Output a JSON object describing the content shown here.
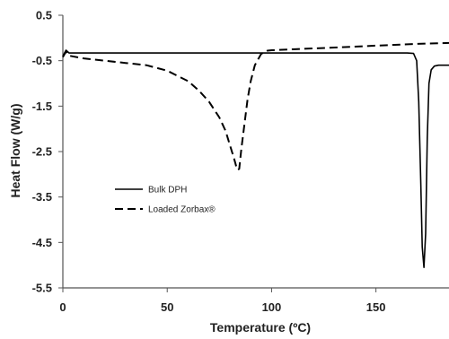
{
  "chart_data": {
    "type": "line",
    "title": "",
    "xlabel": "Temperature (ºC)",
    "ylabel": "Heat Flow (W/g)",
    "xlim": [
      0,
      185
    ],
    "ylim": [
      -5.5,
      0.5
    ],
    "xticks": [
      0,
      50,
      100,
      150
    ],
    "yticks": [
      0.5,
      -0.5,
      -1.5,
      -2.5,
      -3.5,
      -4.5,
      -5.5
    ],
    "grid": false,
    "legend": {
      "placement": "center-left",
      "entries": [
        "Bulk DPH",
        "Loaded Zorbax®"
      ]
    },
    "series": [
      {
        "name": "Bulk DPH",
        "style": "solid",
        "color": "#000000",
        "x": [
          0,
          1.5,
          3,
          10,
          30,
          60,
          90,
          120,
          150,
          165,
          168,
          169.5,
          170.5,
          171.5,
          172.2,
          173,
          173.8,
          174.6,
          175.4,
          176.5,
          178,
          180,
          185
        ],
        "y": [
          -0.4,
          -0.27,
          -0.33,
          -0.33,
          -0.33,
          -0.33,
          -0.33,
          -0.33,
          -0.33,
          -0.33,
          -0.34,
          -0.5,
          -1.4,
          -3.2,
          -4.6,
          -5.05,
          -4.3,
          -2.2,
          -1.0,
          -0.7,
          -0.62,
          -0.6,
          -0.6
        ]
      },
      {
        "name": "Loaded Zorbax®",
        "style": "dashed",
        "color": "#000000",
        "x": [
          0,
          1.5,
          3,
          10,
          20,
          30,
          40,
          50,
          60,
          65,
          70,
          75,
          78,
          80,
          82,
          83.5,
          84.5,
          85.5,
          87,
          88.5,
          90,
          92,
          95,
          98,
          100,
          110,
          130,
          150,
          170,
          185
        ],
        "y": [
          -0.42,
          -0.3,
          -0.39,
          -0.45,
          -0.5,
          -0.55,
          -0.6,
          -0.72,
          -0.95,
          -1.15,
          -1.4,
          -1.75,
          -2.05,
          -2.35,
          -2.65,
          -2.9,
          -2.88,
          -2.45,
          -1.9,
          -1.35,
          -0.95,
          -0.6,
          -0.35,
          -0.28,
          -0.27,
          -0.25,
          -0.21,
          -0.17,
          -0.13,
          -0.11
        ]
      }
    ]
  }
}
